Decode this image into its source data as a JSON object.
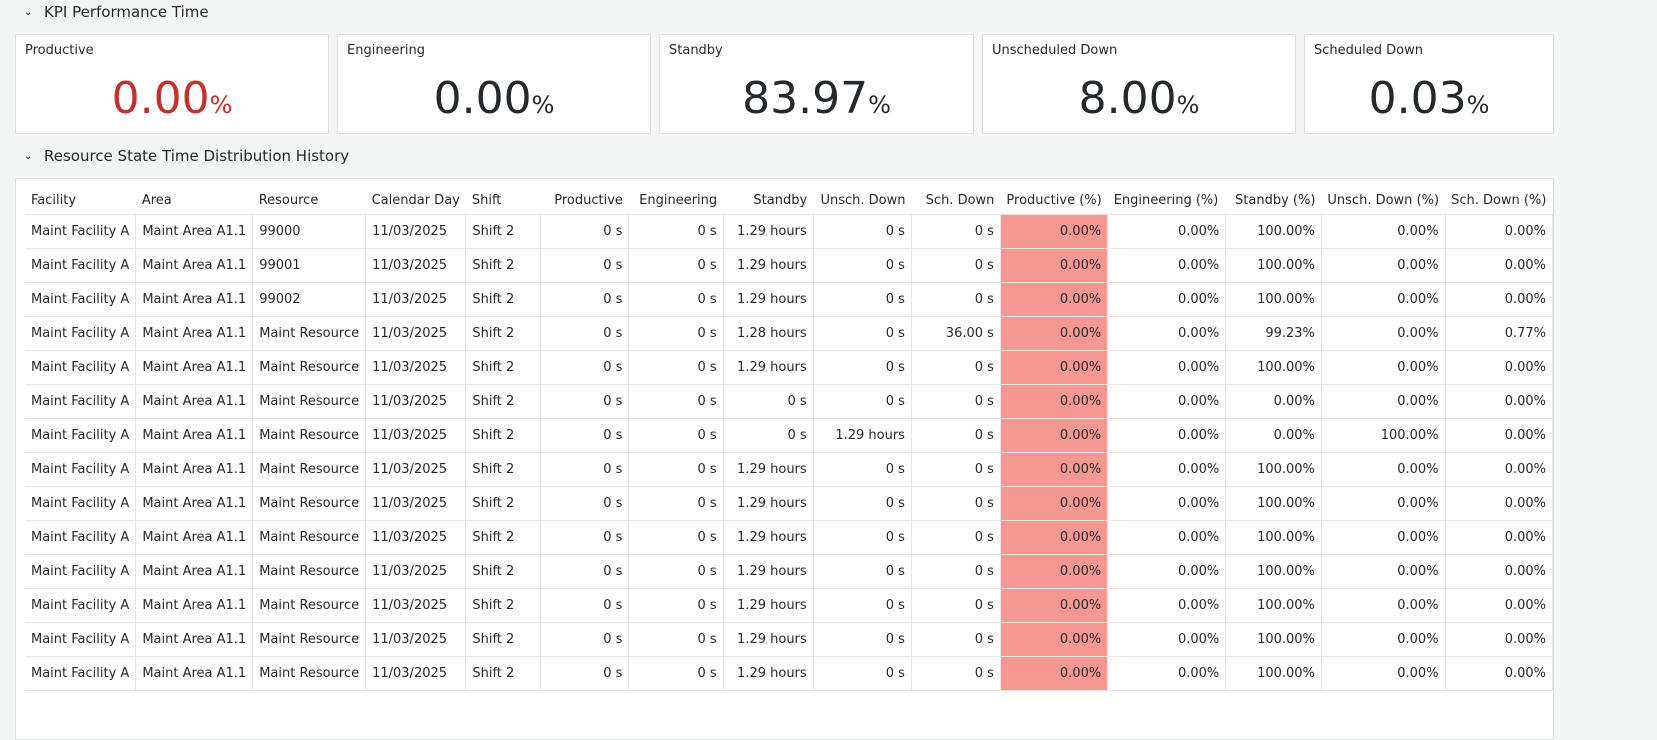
{
  "sections": {
    "kpi": "KPI Performance Time",
    "history": "Resource State Time Distribution History"
  },
  "kpis": [
    {
      "title": "Productive",
      "value": "0.00",
      "unit": "%",
      "color": "#c4312b"
    },
    {
      "title": "Engineering",
      "value": "0.00",
      "unit": "%",
      "color": "#24292e"
    },
    {
      "title": "Standby",
      "value": "83.97",
      "unit": "%",
      "color": "#24292e"
    },
    {
      "title": "Unscheduled Down",
      "value": "8.00",
      "unit": "%",
      "color": "#24292e"
    },
    {
      "title": "Scheduled Down",
      "value": "0.03",
      "unit": "%",
      "color": "#24292e"
    }
  ],
  "table": {
    "columns": [
      "Facility",
      "Area",
      "Resource",
      "Calendar Day",
      "Shift",
      "Productive",
      "Engineering",
      "Standby",
      "Unsch. Down",
      "Sch. Down",
      "Productive (%)",
      "Engineering (%)",
      "Standby (%)",
      "Unsch. Down (%)",
      "Sch. Down (%)"
    ],
    "highlight_color": "#f69892",
    "rows": [
      [
        "Maint Facility A",
        "Maint Area A1.1",
        "99000",
        "11/03/2025",
        "Shift 2",
        "0 s",
        "0 s",
        "1.29 hours",
        "0 s",
        "0 s",
        "0.00%",
        "0.00%",
        "100.00%",
        "0.00%",
        "0.00%"
      ],
      [
        "Maint Facility A",
        "Maint Area A1.1",
        "99001",
        "11/03/2025",
        "Shift 2",
        "0 s",
        "0 s",
        "1.29 hours",
        "0 s",
        "0 s",
        "0.00%",
        "0.00%",
        "100.00%",
        "0.00%",
        "0.00%"
      ],
      [
        "Maint Facility A",
        "Maint Area A1.1",
        "99002",
        "11/03/2025",
        "Shift 2",
        "0 s",
        "0 s",
        "1.29 hours",
        "0 s",
        "0 s",
        "0.00%",
        "0.00%",
        "100.00%",
        "0.00%",
        "0.00%"
      ],
      [
        "Maint Facility A",
        "Maint Area A1.1",
        "Maint Resource",
        "11/03/2025",
        "Shift 2",
        "0 s",
        "0 s",
        "1.28 hours",
        "0 s",
        "36.00 s",
        "0.00%",
        "0.00%",
        "99.23%",
        "0.00%",
        "0.77%"
      ],
      [
        "Maint Facility A",
        "Maint Area A1.1",
        "Maint Resource",
        "11/03/2025",
        "Shift 2",
        "0 s",
        "0 s",
        "1.29 hours",
        "0 s",
        "0 s",
        "0.00%",
        "0.00%",
        "100.00%",
        "0.00%",
        "0.00%"
      ],
      [
        "Maint Facility A",
        "Maint Area A1.1",
        "Maint Resource",
        "11/03/2025",
        "Shift 2",
        "0 s",
        "0 s",
        "0 s",
        "0 s",
        "0 s",
        "0.00%",
        "0.00%",
        "0.00%",
        "0.00%",
        "0.00%"
      ],
      [
        "Maint Facility A",
        "Maint Area A1.1",
        "Maint Resource",
        "11/03/2025",
        "Shift 2",
        "0 s",
        "0 s",
        "0 s",
        "1.29 hours",
        "0 s",
        "0.00%",
        "0.00%",
        "0.00%",
        "100.00%",
        "0.00%"
      ],
      [
        "Maint Facility A",
        "Maint Area A1.1",
        "Maint Resource",
        "11/03/2025",
        "Shift 2",
        "0 s",
        "0 s",
        "1.29 hours",
        "0 s",
        "0 s",
        "0.00%",
        "0.00%",
        "100.00%",
        "0.00%",
        "0.00%"
      ],
      [
        "Maint Facility A",
        "Maint Area A1.1",
        "Maint Resource",
        "11/03/2025",
        "Shift 2",
        "0 s",
        "0 s",
        "1.29 hours",
        "0 s",
        "0 s",
        "0.00%",
        "0.00%",
        "100.00%",
        "0.00%",
        "0.00%"
      ],
      [
        "Maint Facility A",
        "Maint Area A1.1",
        "Maint Resource",
        "11/03/2025",
        "Shift 2",
        "0 s",
        "0 s",
        "1.29 hours",
        "0 s",
        "0 s",
        "0.00%",
        "0.00%",
        "100.00%",
        "0.00%",
        "0.00%"
      ],
      [
        "Maint Facility A",
        "Maint Area A1.1",
        "Maint Resource",
        "11/03/2025",
        "Shift 2",
        "0 s",
        "0 s",
        "1.29 hours",
        "0 s",
        "0 s",
        "0.00%",
        "0.00%",
        "100.00%",
        "0.00%",
        "0.00%"
      ],
      [
        "Maint Facility A",
        "Maint Area A1.1",
        "Maint Resource",
        "11/03/2025",
        "Shift 2",
        "0 s",
        "0 s",
        "1.29 hours",
        "0 s",
        "0 s",
        "0.00%",
        "0.00%",
        "100.00%",
        "0.00%",
        "0.00%"
      ],
      [
        "Maint Facility A",
        "Maint Area A1.1",
        "Maint Resource",
        "11/03/2025",
        "Shift 2",
        "0 s",
        "0 s",
        "1.29 hours",
        "0 s",
        "0 s",
        "0.00%",
        "0.00%",
        "100.00%",
        "0.00%",
        "0.00%"
      ],
      [
        "Maint Facility A",
        "Maint Area A1.1",
        "Maint Resource",
        "11/03/2025",
        "Shift 2",
        "0 s",
        "0 s",
        "1.29 hours",
        "0 s",
        "0 s",
        "0.00%",
        "0.00%",
        "100.00%",
        "0.00%",
        "0.00%"
      ]
    ]
  }
}
